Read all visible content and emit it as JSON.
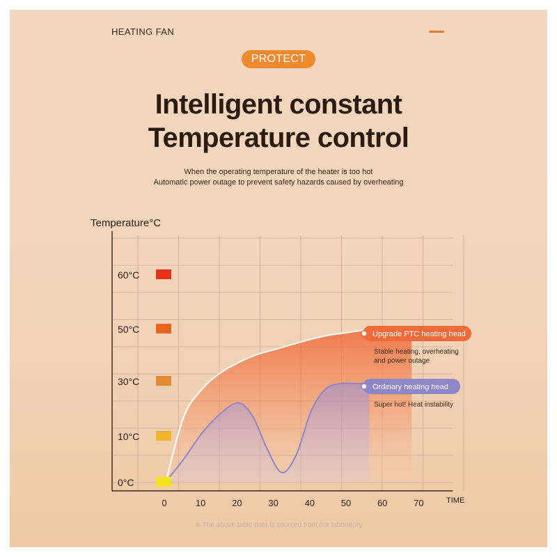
{
  "header": {
    "brand_text": "HEATING FAN",
    "badge_label": "PROTECT",
    "title_line1": "Intelligent constant",
    "title_line2": "Temperature control",
    "subtitle_line1": "When the operating temperature of the heater is too hot",
    "subtitle_line2": "Automatic power outage to prevent safety hazards caused by overheating"
  },
  "colors": {
    "accent": "#ef8a2e",
    "ptc_series": "#f06a3a",
    "ordinary_series": "#8f86c8",
    "grid": "#caa896",
    "axis": "#3a2418"
  },
  "chart_data": {
    "type": "area",
    "ylabel": "Temperature°C",
    "xlabel": "TIME",
    "x_ticks": [
      0,
      10,
      20,
      30,
      40,
      50,
      60,
      70
    ],
    "xlim": [
      -15,
      75
    ],
    "y_levels": [
      {
        "label": "0°C",
        "value": 0,
        "color": "#f4e21a"
      },
      {
        "label": "10°C",
        "value": 10,
        "color": "#f3b52c"
      },
      {
        "label": "30°C",
        "value": 30,
        "color": "#e48a34"
      },
      {
        "label": "50°C",
        "value": 50,
        "color": "#e9641e"
      },
      {
        "label": "60°C",
        "value": 60,
        "color": "#e5301a"
      }
    ],
    "grid": true,
    "series": [
      {
        "name": "Upgrade PTC heating head",
        "note": "Stable heating, overheating and power outage",
        "color": "#f06a3a",
        "x": [
          0,
          5,
          10,
          15,
          20,
          25,
          30,
          35,
          40,
          45,
          50,
          55,
          60
        ],
        "y": [
          0,
          17,
          27,
          33,
          37,
          40,
          42,
          44,
          46,
          47.5,
          48.5,
          49.5,
          50
        ]
      },
      {
        "name": "Ordinary heating head",
        "note": "Super hot! Heat instability",
        "color": "#8f86c8",
        "x": [
          0,
          5,
          10,
          15,
          20,
          24,
          28,
          32,
          36,
          40,
          44,
          48,
          52,
          56
        ],
        "y": [
          0,
          5,
          11,
          18,
          22,
          17,
          7,
          2,
          6,
          19,
          27,
          29,
          29,
          29
        ]
      }
    ]
  },
  "footer": {
    "note": "※ The above table data is sourced from our laboratory"
  }
}
